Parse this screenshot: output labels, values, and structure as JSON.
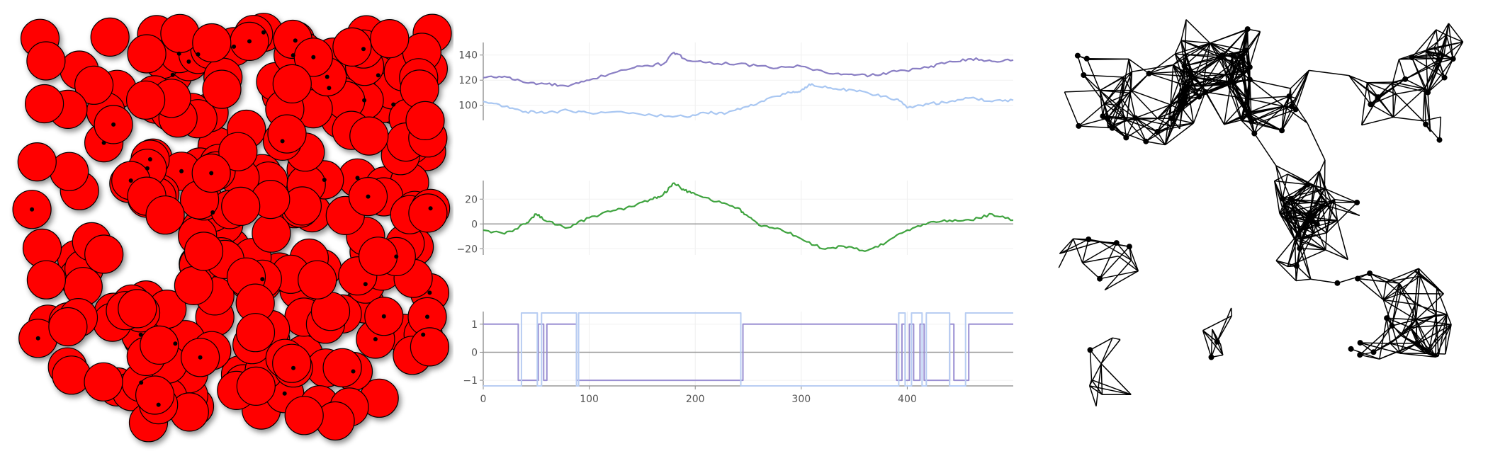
{
  "panels": {
    "circles": {
      "fill_color": "#ff0000",
      "stroke_color": "#000000",
      "dot_color": "#000000"
    },
    "graph": {
      "edge_color": "#000000",
      "node_color": "#000000"
    }
  },
  "chart_data": [
    {
      "type": "line",
      "ylim": [
        88,
        150
      ],
      "xlim": [
        0,
        500
      ],
      "yticks": [
        "100",
        "120",
        "140"
      ],
      "xticks": [],
      "series": [
        {
          "color": "#8a7fc4",
          "points": [
            [
              0,
              122
            ],
            [
              20,
              123
            ],
            [
              40,
              118
            ],
            [
              60,
              117
            ],
            [
              80,
              115
            ],
            [
              100,
              120
            ],
            [
              130,
              128
            ],
            [
              150,
              131
            ],
            [
              170,
              133
            ],
            [
              180,
              142
            ],
            [
              190,
              137
            ],
            [
              210,
              134
            ],
            [
              240,
              133
            ],
            [
              270,
              130
            ],
            [
              300,
              131
            ],
            [
              330,
              125
            ],
            [
              350,
              124
            ],
            [
              370,
              124
            ],
            [
              390,
              127
            ],
            [
              420,
              130
            ],
            [
              440,
              135
            ],
            [
              460,
              137
            ],
            [
              480,
              135
            ],
            [
              500,
              136
            ]
          ]
        },
        {
          "color": "#a9c7f2",
          "points": [
            [
              0,
              103
            ],
            [
              20,
              99
            ],
            [
              40,
              95
            ],
            [
              60,
              94
            ],
            [
              80,
              96
            ],
            [
              100,
              94
            ],
            [
              130,
              95
            ],
            [
              160,
              92
            ],
            [
              190,
              91
            ],
            [
              210,
              94
            ],
            [
              230,
              94
            ],
            [
              250,
              99
            ],
            [
              270,
              106
            ],
            [
              290,
              110
            ],
            [
              300,
              112
            ],
            [
              310,
              117
            ],
            [
              330,
              113
            ],
            [
              350,
              112
            ],
            [
              370,
              108
            ],
            [
              390,
              105
            ],
            [
              400,
              98
            ],
            [
              420,
              101
            ],
            [
              440,
              103
            ],
            [
              460,
              106
            ],
            [
              480,
              103
            ],
            [
              500,
              104
            ]
          ]
        }
      ]
    },
    {
      "type": "line",
      "ylim": [
        -25,
        35
      ],
      "xlim": [
        0,
        500
      ],
      "yticks": [
        "20",
        "0",
        "−20"
      ],
      "xticks": [],
      "series": [
        {
          "color": "#3fa33f",
          "points": [
            [
              0,
              -5
            ],
            [
              20,
              -8
            ],
            [
              40,
              0
            ],
            [
              50,
              8
            ],
            [
              60,
              2
            ],
            [
              80,
              -3
            ],
            [
              100,
              5
            ],
            [
              120,
              10
            ],
            [
              140,
              14
            ],
            [
              160,
              20
            ],
            [
              170,
              24
            ],
            [
              180,
              33
            ],
            [
              190,
              27
            ],
            [
              200,
              24
            ],
            [
              220,
              18
            ],
            [
              240,
              13
            ],
            [
              250,
              6
            ],
            [
              260,
              -1
            ],
            [
              280,
              -4
            ],
            [
              300,
              -12
            ],
            [
              320,
              -20
            ],
            [
              340,
              -18
            ],
            [
              360,
              -22
            ],
            [
              380,
              -15
            ],
            [
              400,
              -5
            ],
            [
              420,
              1
            ],
            [
              440,
              3
            ],
            [
              460,
              3
            ],
            [
              480,
              8
            ],
            [
              500,
              3
            ]
          ]
        }
      ]
    },
    {
      "type": "line",
      "ylim": [
        -1.2,
        1.45
      ],
      "xlim": [
        0,
        500
      ],
      "yticks": [
        "1",
        "0",
        "−1"
      ],
      "xticks": [
        "0",
        "100",
        "200",
        "300",
        "400"
      ],
      "series": [
        {
          "color": "#9a8fd2",
          "points": [
            [
              0,
              1
            ],
            [
              33,
              1
            ],
            [
              33,
              -1
            ],
            [
              52,
              -1
            ],
            [
              52,
              1
            ],
            [
              57,
              1
            ],
            [
              57,
              -1
            ],
            [
              60,
              -1
            ],
            [
              60,
              1
            ],
            [
              88,
              1
            ],
            [
              88,
              -1
            ],
            [
              245,
              -1
            ],
            [
              245,
              1
            ],
            [
              390,
              1
            ],
            [
              390,
              -1
            ],
            [
              395,
              -1
            ],
            [
              395,
              1
            ],
            [
              398,
              1
            ],
            [
              398,
              -1
            ],
            [
              402,
              -1
            ],
            [
              402,
              1
            ],
            [
              406,
              1
            ],
            [
              406,
              -1
            ],
            [
              412,
              -1
            ],
            [
              412,
              1
            ],
            [
              416,
              1
            ],
            [
              416,
              -1
            ],
            [
              440,
              -1
            ],
            [
              440,
              1
            ],
            [
              444,
              1
            ],
            [
              444,
              -1
            ],
            [
              458,
              -1
            ],
            [
              458,
              1
            ],
            [
              500,
              1
            ]
          ]
        },
        {
          "color": "#b8cdf2",
          "points": [
            [
              0,
              -1.2
            ],
            [
              36,
              -1.2
            ],
            [
              36,
              1.4
            ],
            [
              51,
              1.4
            ],
            [
              51,
              -1.2
            ],
            [
              55,
              -1.2
            ],
            [
              55,
              1.4
            ],
            [
              88,
              1.4
            ],
            [
              88,
              -1.2
            ],
            [
              90,
              -1.2
            ],
            [
              90,
              1.4
            ],
            [
              243,
              1.4
            ],
            [
              243,
              -1.2
            ],
            [
              392,
              -1.2
            ],
            [
              392,
              1.4
            ],
            [
              398,
              1.4
            ],
            [
              398,
              -1.2
            ],
            [
              404,
              -1.2
            ],
            [
              404,
              1.4
            ],
            [
              414,
              1.4
            ],
            [
              414,
              -1.2
            ],
            [
              418,
              -1.2
            ],
            [
              418,
              1.4
            ],
            [
              440,
              1.4
            ],
            [
              440,
              -1.2
            ],
            [
              455,
              -1.2
            ],
            [
              455,
              1.4
            ],
            [
              500,
              1.4
            ]
          ]
        }
      ]
    }
  ]
}
